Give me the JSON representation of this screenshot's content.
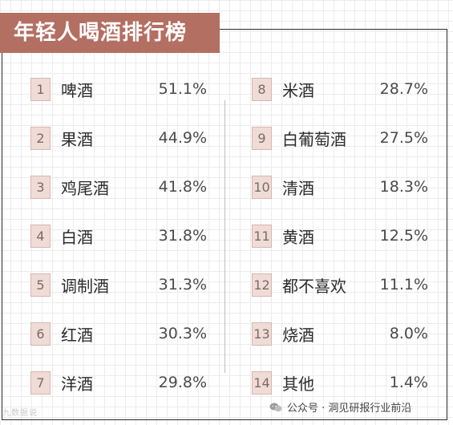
{
  "title": "年轻人喝酒排行榜",
  "accent_color": "#b36f62",
  "rank_badge_color": "#f0dcd6",
  "left_items": [
    {
      "rank": "1",
      "name": "啤酒",
      "value": "51.1%"
    },
    {
      "rank": "2",
      "name": "果酒",
      "value": "44.9%"
    },
    {
      "rank": "3",
      "name": "鸡尾酒",
      "value": "41.8%"
    },
    {
      "rank": "4",
      "name": "白酒",
      "value": "31.8%"
    },
    {
      "rank": "5",
      "name": "调制酒",
      "value": "31.3%"
    },
    {
      "rank": "6",
      "name": "红酒",
      "value": "30.3%"
    },
    {
      "rank": "7",
      "name": "洋酒",
      "value": "29.8%"
    }
  ],
  "right_items": [
    {
      "rank": "8",
      "name": "米酒",
      "value": "28.7%"
    },
    {
      "rank": "9",
      "name": "白葡萄酒",
      "value": "27.5%"
    },
    {
      "rank": "10",
      "name": "清酒",
      "value": "18.3%"
    },
    {
      "rank": "11",
      "name": "黄酒",
      "value": "12.5%"
    },
    {
      "rank": "12",
      "name": "都不喜欢",
      "value": "11.1%"
    },
    {
      "rank": "13",
      "name": "烧酒",
      "value": "8.0%"
    },
    {
      "rank": "14",
      "name": "其他",
      "value": "1.4%"
    }
  ],
  "footer": {
    "icon": "wechat-icon",
    "text": "公众号 · 洞见研报行业前沿"
  },
  "corner_mark": "九数据说"
}
